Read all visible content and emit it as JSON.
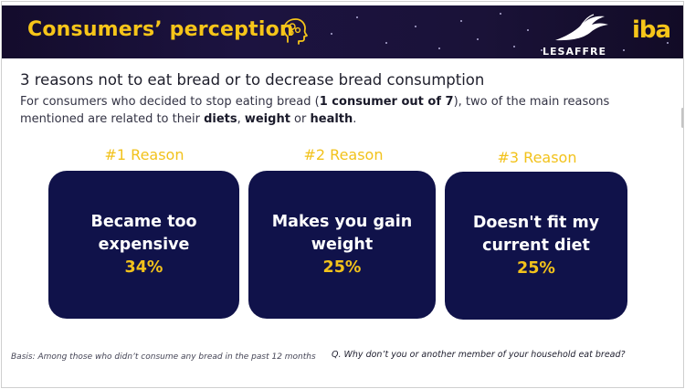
{
  "header": {
    "title": "Consumers’ perception",
    "brand": "LESAFFRE",
    "partner_logo": "iba",
    "icons": [
      "head-brain-icon",
      "swallow-bird-logo"
    ],
    "colors": {
      "banner": "#1a1238",
      "accent": "#f2c21b"
    }
  },
  "section": {
    "heading": "3 reasons not to eat bread or to decrease bread consumption",
    "intro_pre": "For consumers who decided to stop eating bread (",
    "intro_bold_1": "1 consumer out of 7",
    "intro_mid": "), two of the main reasons mentioned are related to their ",
    "intro_bold_2": "diets",
    "intro_sep_1": ", ",
    "intro_bold_3": "weight",
    "intro_sep_2": " or ",
    "intro_bold_4": "health",
    "intro_end": "."
  },
  "reasons": [
    {
      "label": "#1 Reason",
      "line1": "Became too",
      "line2": "expensive",
      "pct": "34%"
    },
    {
      "label": "#2 Reason",
      "line1": "Makes you gain",
      "line2": "weight",
      "pct": "25%"
    },
    {
      "label": "#3 Reason",
      "line1": "Doesn't fit my",
      "line2": "current diet",
      "pct": "25%"
    }
  ],
  "footer": {
    "basis": "Basis: Among those who didn’t consume any bread in the past 12 months",
    "question": "Q. Why don’t you or another member of your household eat bread?"
  },
  "card_color": "#10124a"
}
